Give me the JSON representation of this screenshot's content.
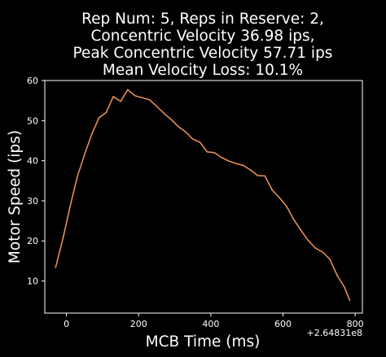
{
  "chart_data": {
    "type": "line",
    "title_lines": [
      "Rep Num: 5, Reps in Reserve: 2,",
      "Concentric Velocity 36.98 ips,",
      "Peak Concentric Velocity 57.71 ips",
      "Mean Velocity Loss: 10.1%"
    ],
    "xlabel": "MCB Time (ms)",
    "ylabel": "Motor Speed (ips)",
    "x_offset_label": "+2.64831e8",
    "xlim": [
      -60,
      820
    ],
    "ylim": [
      2,
      60
    ],
    "x_ticks": [
      0,
      200,
      400,
      600,
      800
    ],
    "y_ticks": [
      10,
      20,
      30,
      40,
      50,
      60
    ],
    "grid": false,
    "background": "#000000",
    "axis_color": "#ffffff",
    "series": [
      {
        "color": "#f0965a",
        "x": [
          -30,
          -10,
          10,
          30,
          50,
          70,
          90,
          110,
          130,
          150,
          170,
          190,
          210,
          230,
          250,
          270,
          290,
          310,
          330,
          350,
          370,
          390,
          410,
          430,
          450,
          470,
          490,
          510,
          530,
          550,
          570,
          590,
          610,
          630,
          650,
          670,
          690,
          710,
          730,
          750,
          770,
          785
        ],
        "y": [
          13.4,
          20.5,
          28.5,
          36,
          41.5,
          46.6,
          50.7,
          52,
          56,
          54.8,
          57.7,
          56.2,
          55.7,
          55.2,
          53.6,
          51.8,
          50.3,
          48.5,
          47.2,
          45.4,
          44.6,
          42.2,
          42,
          40.8,
          39.9,
          39.3,
          38.8,
          37.7,
          36.3,
          36.2,
          32.7,
          30.8,
          28.6,
          25.3,
          22.6,
          20.1,
          18.2,
          17.2,
          15.4,
          11.4,
          8.5,
          5.2
        ]
      }
    ]
  }
}
